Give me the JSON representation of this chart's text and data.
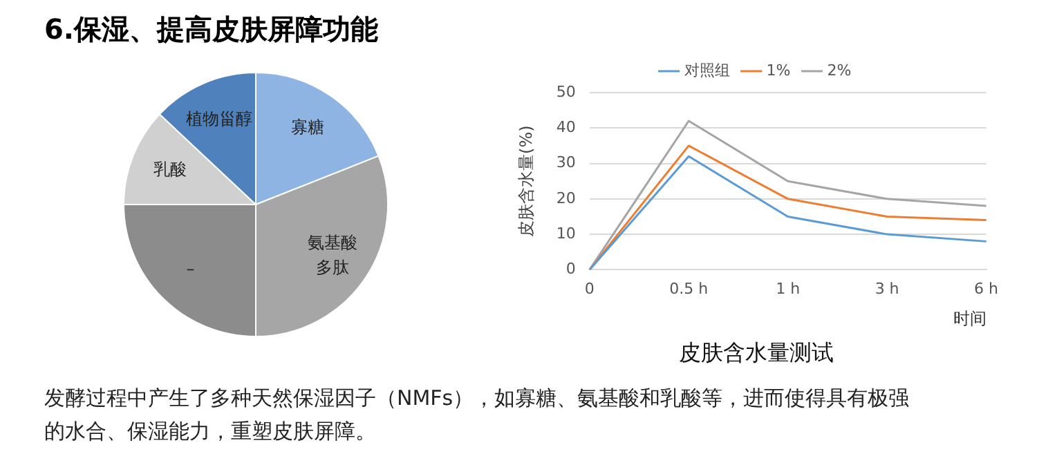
{
  "chart_data": [
    {
      "type": "pie",
      "title": "6.保湿、提高皮肤屏障功能",
      "categories": [
        "寡糖",
        "氨基酸多肽",
        "–",
        "乳酸",
        "植物甾醇"
      ],
      "values": [
        19,
        31,
        25,
        12,
        13
      ],
      "colors": [
        "#8eb4e3",
        "#a6a6a6",
        "#8c8c8c",
        "#d0d0d0",
        "#4f81bd"
      ],
      "data_labels": false
    },
    {
      "type": "line",
      "title": "皮肤含水量测试",
      "xlabel": "时间",
      "ylabel": "皮肤含水量(%)",
      "categories": [
        "0",
        "0.5 h",
        "1 h",
        "3 h",
        "6 h"
      ],
      "ylim": [
        0,
        50
      ],
      "yticks": [
        0,
        10,
        20,
        30,
        40,
        50
      ],
      "grid": "y",
      "legend": "top",
      "marker": "none",
      "line_style": "solid",
      "series": [
        {
          "name": "对照组",
          "color": "#5b9bd5",
          "values": [
            0,
            32,
            15,
            10,
            8
          ]
        },
        {
          "name": "1%",
          "color": "#ed7d31",
          "values": [
            0,
            35,
            20,
            15,
            14
          ]
        },
        {
          "name": "2%",
          "color": "#a5a5a5",
          "values": [
            0,
            42,
            25,
            20,
            18
          ]
        }
      ],
      "annotations": [
        "发酵过程中产生了多种天然保湿因子（NMFs），如寡糖、氨基酸和乳酸等，进而使得具有极强的水合、保湿能力，重塑皮肤屏障。"
      ]
    }
  ]
}
